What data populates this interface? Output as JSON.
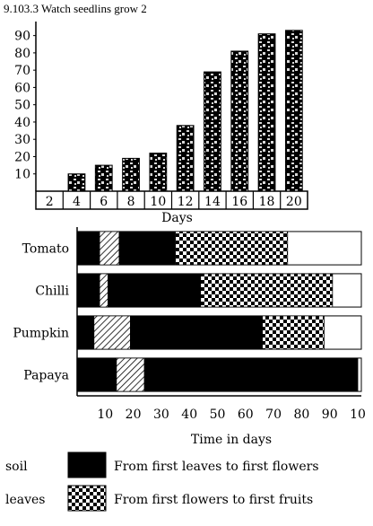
{
  "header": "9.103.3 Watch seedlins grow 2",
  "colors": {
    "ink": "#000000",
    "paper": "#ffffff",
    "pattern_fill": "#d9d9d9"
  },
  "chart_data": [
    {
      "type": "bar",
      "title": "",
      "xlabel": "Days",
      "ylabel": "",
      "categories": [
        "2",
        "4",
        "6",
        "8",
        "10",
        "12",
        "14",
        "16",
        "18",
        "20"
      ],
      "values": [
        0,
        10,
        15,
        19,
        22,
        38,
        69,
        81,
        91,
        93
      ],
      "ylim": [
        0,
        95
      ],
      "yticks": [
        "10",
        "20",
        "30",
        "40",
        "50",
        "60",
        "70",
        "80",
        "90"
      ],
      "bar_style": "black with grey speckle pattern",
      "grid": false
    },
    {
      "type": "bar",
      "orientation": "horizontal-stacked",
      "title": "",
      "xlabel": "Time in days",
      "ylabel": "",
      "categories": [
        "Tomato",
        "Chilli",
        "Pumpkin",
        "Papaya"
      ],
      "xticks": [
        "10",
        "20",
        "30",
        "40",
        "50",
        "60",
        "70",
        "80",
        "90",
        "10"
      ],
      "xlim": [
        0,
        100
      ],
      "series": [
        {
          "name": "soil",
          "pattern": "black",
          "values": [
            8,
            8,
            6,
            14
          ]
        },
        {
          "name": "",
          "pattern": "hatch",
          "values": [
            7,
            3,
            13,
            10
          ]
        },
        {
          "name": "From first leaves to first flowers",
          "pattern": "black",
          "values": [
            20,
            33,
            47,
            76
          ]
        },
        {
          "name": "From first flowers to first fruits",
          "pattern": "check",
          "values": [
            40,
            47,
            22,
            0
          ]
        }
      ],
      "legend_position": "bottom",
      "legend": [
        {
          "left_label": "soil",
          "label": "From first leaves to first flowers",
          "pattern": "black"
        },
        {
          "left_label": "leaves",
          "label": "From first flowers to first fruits",
          "pattern": "check"
        }
      ]
    }
  ]
}
